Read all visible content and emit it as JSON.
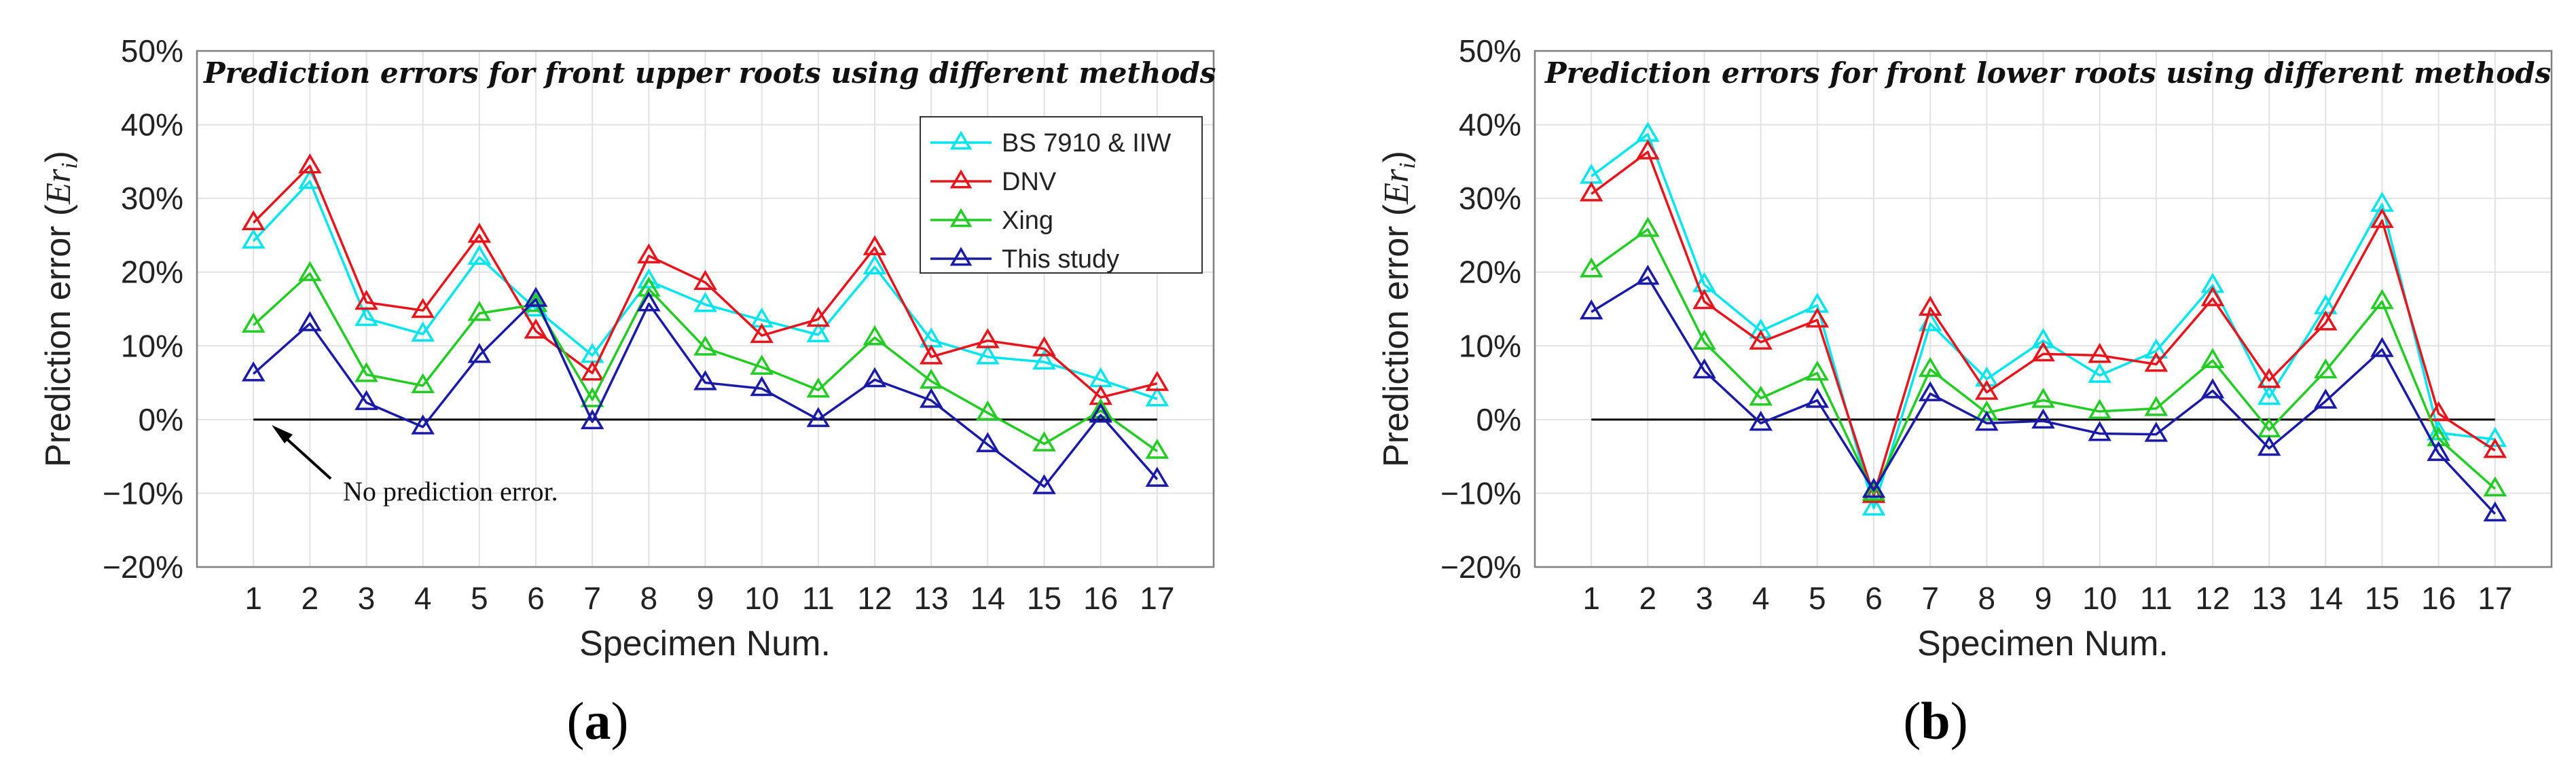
{
  "chart_data": [
    {
      "type": "line",
      "panel_label": "a",
      "title": "Prediction errors for front upper roots using different methods",
      "xlabel": "Specimen Num.",
      "ylabel_prefix": "Prediction error (",
      "ylabel_math": "Er",
      "ylabel_sub": "i",
      "ylabel_suffix": ")",
      "categories": [
        "1",
        "2",
        "3",
        "4",
        "5",
        "6",
        "7",
        "8",
        "9",
        "10",
        "11",
        "12",
        "13",
        "14",
        "15",
        "16",
        "17"
      ],
      "ylim": [
        -20,
        50
      ],
      "yticks": [
        -20,
        -10,
        0,
        10,
        20,
        30,
        40,
        50
      ],
      "ytick_labels": [
        "−20%",
        "−10%",
        "0%",
        "10%",
        "20%",
        "30%",
        "40%",
        "50%"
      ],
      "grid": true,
      "legend_position": "top-right",
      "reference_line_y": 0,
      "annotation": "No prediction error.",
      "series": [
        {
          "name": "BS 7910 & IIW",
          "color": "#00e5ee",
          "values": [
            24.2,
            32.3,
            13.7,
            11.6,
            22.0,
            15.0,
            8.7,
            18.8,
            15.6,
            13.5,
            11.5,
            20.7,
            10.8,
            8.5,
            7.8,
            5.4,
            2.8
          ]
        },
        {
          "name": "DNV",
          "color": "#e8141b",
          "values": [
            26.7,
            34.4,
            15.9,
            14.8,
            25.0,
            12.0,
            6.3,
            22.2,
            18.6,
            11.4,
            13.6,
            23.3,
            8.5,
            10.7,
            9.6,
            3.0,
            4.9
          ]
        },
        {
          "name": "Xing",
          "color": "#22cc22",
          "values": [
            12.8,
            19.8,
            6.1,
            4.6,
            14.4,
            15.6,
            2.7,
            17.7,
            9.7,
            7.1,
            4.0,
            11.1,
            5.2,
            0.9,
            -3.3,
            1.2,
            -4.3
          ]
        },
        {
          "name": "This study",
          "color": "#1a1aa8",
          "values": [
            6.2,
            13.0,
            2.3,
            -1.0,
            8.7,
            16.3,
            -0.3,
            15.7,
            5.0,
            4.2,
            0.0,
            5.4,
            2.6,
            -3.4,
            -9.1,
            0.6,
            -8.1
          ]
        }
      ]
    },
    {
      "type": "line",
      "panel_label": "b",
      "title": "Prediction errors for front lower roots using different methods",
      "xlabel": "Specimen Num.",
      "ylabel_prefix": "Prediction error (",
      "ylabel_math": "Er",
      "ylabel_sub": "i",
      "ylabel_suffix": ")",
      "categories": [
        "1",
        "2",
        "3",
        "4",
        "5",
        "6",
        "7",
        "8",
        "9",
        "10",
        "11",
        "12",
        "13",
        "14",
        "15",
        "16",
        "17"
      ],
      "ylim": [
        -20,
        50
      ],
      "yticks": [
        -20,
        -10,
        0,
        10,
        20,
        30,
        40,
        50
      ],
      "ytick_labels": [
        "−20%",
        "−10%",
        "0%",
        "10%",
        "20%",
        "30%",
        "40%",
        "50%"
      ],
      "grid": true,
      "reference_line_y": 0,
      "series": [
        {
          "name": "BS 7910 & IIW",
          "color": "#00e5ee",
          "values": [
            33.0,
            38.7,
            18.3,
            12.0,
            15.5,
            -12.0,
            13.0,
            5.5,
            10.7,
            6.0,
            9.3,
            18.2,
            3.0,
            15.3,
            29.2,
            -1.8,
            -2.7
          ]
        },
        {
          "name": "DNV",
          "color": "#e8141b",
          "values": [
            30.6,
            36.3,
            16.0,
            10.5,
            13.5,
            -10.3,
            15.1,
            3.7,
            8.9,
            8.7,
            7.5,
            16.4,
            5.3,
            13.1,
            27.0,
            0.8,
            -4.2
          ]
        },
        {
          "name": "Xing",
          "color": "#22cc22",
          "values": [
            20.3,
            25.8,
            10.5,
            2.9,
            6.3,
            -10.0,
            6.8,
            0.9,
            2.6,
            1.1,
            1.5,
            8.0,
            -1.4,
            6.6,
            16.0,
            -2.6,
            -9.4
          ]
        },
        {
          "name": "This study",
          "color": "#1a1aa8",
          "values": [
            14.6,
            19.3,
            6.6,
            -0.5,
            2.6,
            -9.6,
            3.5,
            -0.5,
            -0.2,
            -1.9,
            -2.0,
            3.9,
            -3.9,
            2.5,
            9.5,
            -4.6,
            -12.8
          ]
        }
      ]
    }
  ]
}
